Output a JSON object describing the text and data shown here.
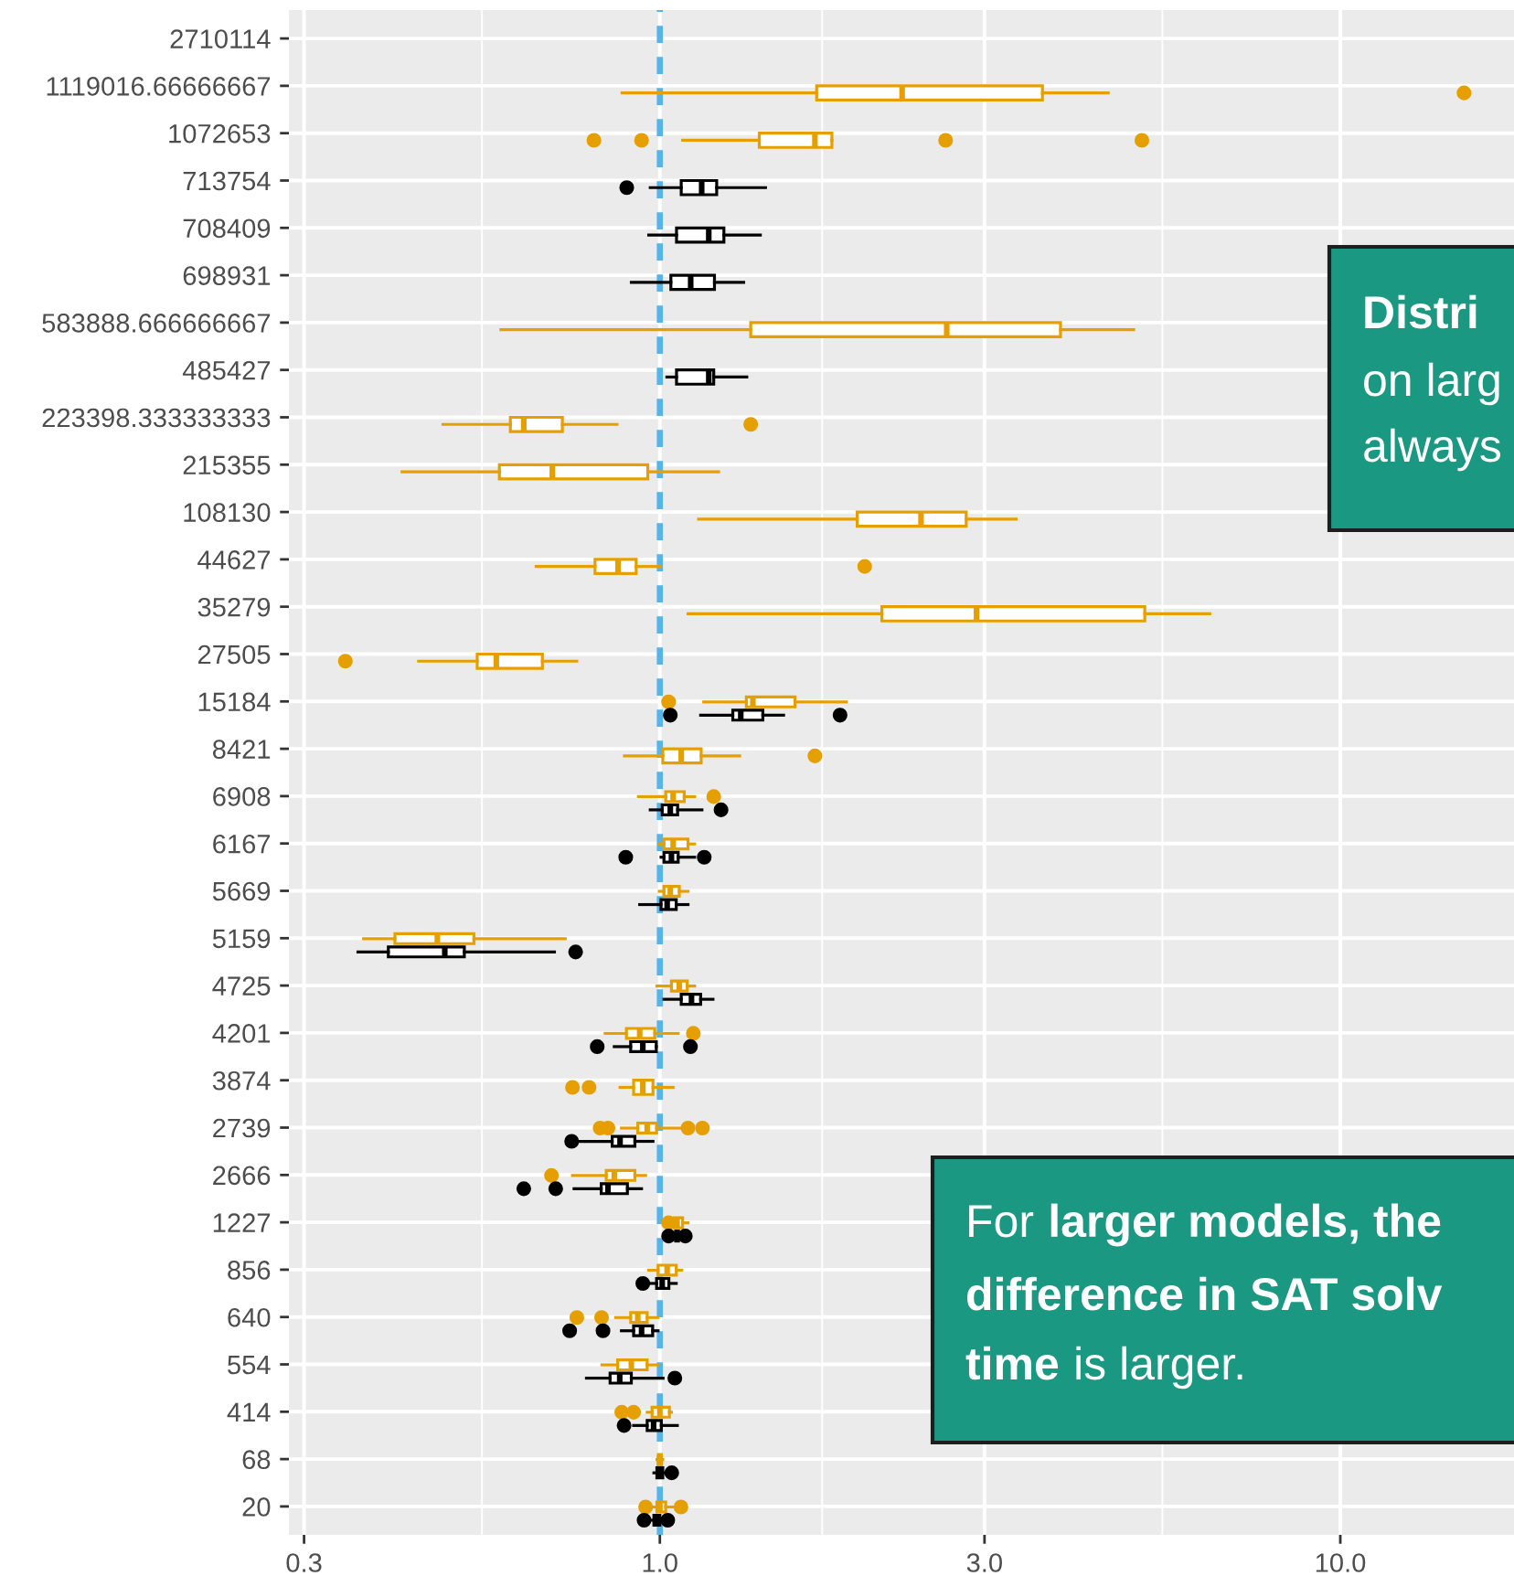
{
  "chart_data": {
    "type": "box",
    "orientation": "horizontal",
    "log": "x",
    "grid": true,
    "marker": "circle",
    "categories": [
      "2710114",
      "1119016.66666667",
      "1072653",
      "713754",
      "708409",
      "698931",
      "583888.666666667",
      "485427",
      "223398.333333333",
      "215355",
      "108130",
      "44627",
      "35279",
      "27505",
      "15184",
      "8421",
      "6908",
      "6167",
      "5669",
      "5159",
      "4725",
      "4201",
      "3874",
      "2739",
      "2666",
      "1227",
      "856",
      "640",
      "554",
      "414",
      "68",
      "20"
    ],
    "series": [
      {
        "color": "#e69f00",
        "boxes": [
          null,
          {
            "low": 0.88,
            "q1": 1.7,
            "median": 2.27,
            "q3": 3.65,
            "high": 4.56,
            "outliers": [
              15.2
            ]
          },
          {
            "low": 1.08,
            "q1": 1.4,
            "median": 1.69,
            "q3": 1.79,
            "high": 1.79,
            "outliers": [
              0.8,
              0.94,
              2.63,
              5.11
            ]
          },
          null,
          null,
          null,
          {
            "low": 0.584,
            "q1": 1.36,
            "median": 2.64,
            "q3": 3.88,
            "high": 4.97
          },
          null,
          {
            "low": 0.48,
            "q1": 0.603,
            "median": 0.631,
            "q3": 0.719,
            "high": 0.865,
            "outliers": [
              1.36
            ]
          },
          {
            "low": 0.418,
            "q1": 0.581,
            "median": 0.695,
            "q3": 0.96,
            "high": 1.22
          },
          {
            "low": 1.14,
            "q1": 1.95,
            "median": 2.42,
            "q3": 2.82,
            "high": 3.34
          },
          {
            "low": 0.658,
            "q1": 0.803,
            "median": 0.868,
            "q3": 0.923,
            "high": 1.0,
            "outliers": [
              2.0
            ]
          },
          {
            "low": 1.1,
            "q1": 2.12,
            "median": 2.92,
            "q3": 5.16,
            "high": 6.43
          },
          {
            "low": 0.442,
            "q1": 0.539,
            "median": 0.575,
            "q3": 0.672,
            "high": 0.755,
            "outliers": [
              0.345
            ]
          },
          {
            "low": 1.16,
            "q1": 1.34,
            "median": 1.37,
            "q3": 1.58,
            "high": 1.88,
            "outliers": [
              1.03
            ]
          },
          {
            "low": 0.887,
            "q1": 1.01,
            "median": 1.075,
            "q3": 1.15,
            "high": 1.31,
            "outliers": [
              1.69
            ]
          },
          {
            "low": 0.93,
            "q1": 1.02,
            "median": 1.046,
            "q3": 1.086,
            "high": 1.125,
            "outliers": [
              1.2
            ]
          },
          {
            "low": 0.998,
            "q1": 1.014,
            "median": 1.046,
            "q3": 1.1,
            "high": 1.125
          },
          {
            "low": 0.998,
            "q1": 1.014,
            "median": 1.036,
            "q3": 1.068,
            "high": 1.1
          },
          {
            "low": 0.367,
            "q1": 0.408,
            "median": 0.471,
            "q3": 0.533,
            "high": 0.726
          },
          {
            "low": 0.99,
            "q1": 1.04,
            "median": 1.068,
            "q3": 1.097,
            "high": 1.125
          },
          {
            "low": 0.831,
            "q1": 0.893,
            "median": 0.934,
            "q3": 0.983,
            "high": 1.064,
            "outliers": [
              1.12
            ]
          },
          {
            "low": 0.874,
            "q1": 0.915,
            "median": 0.944,
            "q3": 0.977,
            "high": 1.046,
            "outliers": [
              0.744,
              0.787
            ]
          },
          {
            "low": 0.878,
            "q1": 0.928,
            "median": 0.958,
            "q3": 0.989,
            "high": 1.079,
            "outliers": [
              0.817,
              0.839,
              1.1,
              1.155
            ]
          },
          {
            "low": 0.744,
            "q1": 0.834,
            "median": 0.857,
            "q3": 0.919,
            "high": 0.953,
            "outliers": [
              0.693
            ]
          },
          {
            "low": 1.04,
            "q1": 1.05,
            "median": 1.06,
            "q3": 1.08,
            "high": 1.1,
            "outliers": [
              1.03
            ]
          },
          {
            "low": 0.963,
            "q1": 0.994,
            "median": 1.025,
            "q3": 1.057,
            "high": 1.077
          },
          {
            "low": 0.861,
            "q1": 0.906,
            "median": 0.928,
            "q3": 0.958,
            "high": 0.994,
            "outliers": [
              0.755,
              0.821
            ]
          },
          {
            "low": 0.822,
            "q1": 0.867,
            "median": 0.908,
            "q3": 0.958,
            "high": 0.992
          },
          {
            "low": 0.958,
            "q1": 0.974,
            "median": 1.0,
            "q3": 1.033,
            "high": 1.04,
            "outliers": [
              0.879,
              0.915
            ]
          },
          {
            "low": 0.99,
            "q1": 0.995,
            "median": 1.0,
            "q3": 1.005,
            "high": 1.01
          },
          {
            "low": 0.97,
            "q1": 0.99,
            "median": 1.0,
            "q3": 1.02,
            "high": 1.05,
            "outliers": [
              0.953,
              1.074
            ]
          }
        ]
      },
      {
        "color": "#000000",
        "boxes": [
          null,
          null,
          null,
          {
            "low": 0.968,
            "q1": 1.075,
            "median": 1.152,
            "q3": 1.212,
            "high": 1.43,
            "outliers": [
              0.894
            ]
          },
          {
            "low": 0.963,
            "q1": 1.058,
            "median": 1.18,
            "q3": 1.242,
            "high": 1.405
          },
          {
            "low": 0.908,
            "q1": 1.038,
            "median": 1.11,
            "q3": 1.203,
            "high": 1.328
          },
          null,
          {
            "low": 1.024,
            "q1": 1.058,
            "median": 1.18,
            "q3": 1.2,
            "high": 1.342
          },
          null,
          null,
          null,
          null,
          null,
          null,
          {
            "low": 1.148,
            "q1": 1.28,
            "median": 1.315,
            "q3": 1.417,
            "high": 1.52,
            "outliers": [
              1.036,
              1.84
            ]
          },
          null,
          {
            "low": 0.968,
            "q1": 1.008,
            "median": 1.036,
            "q3": 1.062,
            "high": 1.153,
            "outliers": [
              1.23
            ]
          },
          {
            "low": 1.004,
            "q1": 1.014,
            "median": 1.04,
            "q3": 1.064,
            "high": 1.125,
            "outliers": [
              0.891,
              1.162
            ]
          },
          {
            "low": 0.934,
            "q1": 1.004,
            "median": 1.025,
            "q3": 1.057,
            "high": 1.1
          },
          {
            "low": 0.36,
            "q1": 0.399,
            "median": 0.483,
            "q3": 0.516,
            "high": 0.7,
            "outliers": [
              0.752
            ]
          },
          {
            "low": 1.014,
            "q1": 1.075,
            "median": 1.113,
            "q3": 1.148,
            "high": 1.197
          },
          {
            "low": 0.857,
            "q1": 0.906,
            "median": 0.944,
            "q3": 0.988,
            "high": 0.988,
            "outliers": [
              0.809,
              1.109
            ]
          },
          null,
          {
            "low": 0.757,
            "q1": 0.851,
            "median": 0.874,
            "q3": 0.919,
            "high": 0.977,
            "outliers": [
              0.742
            ]
          },
          {
            "low": 0.748,
            "q1": 0.82,
            "median": 0.839,
            "q3": 0.896,
            "high": 0.94,
            "outliers": [
              0.631,
              0.703
            ]
          },
          {
            "low": 1.05,
            "q1": 1.055,
            "median": 1.06,
            "q3": 1.065,
            "high": 1.07,
            "outliers": [
              1.03,
              1.09
            ]
          },
          {
            "low": 0.968,
            "q1": 0.989,
            "median": 1.008,
            "q3": 1.031,
            "high": 1.057,
            "outliers": [
              0.944
            ]
          },
          {
            "low": 0.878,
            "q1": 0.915,
            "median": 0.94,
            "q3": 0.976,
            "high": 0.994,
            "outliers": [
              0.737,
              0.825
            ]
          },
          {
            "low": 0.78,
            "q1": 0.845,
            "median": 0.873,
            "q3": 0.908,
            "high": 1.011,
            "outliers": [
              1.052
            ]
          },
          {
            "low": 0.915,
            "q1": 0.958,
            "median": 0.979,
            "q3": 1.005,
            "high": 1.061,
            "outliers": [
              0.886
            ]
          },
          {
            "low": 0.98,
            "q1": 0.99,
            "median": 1.0,
            "q3": 1.01,
            "high": 1.02,
            "outliers": [
              1.041
            ]
          },
          {
            "low": 0.96,
            "q1": 0.98,
            "median": 0.99,
            "q3": 1.0,
            "high": 1.01,
            "outliers": [
              0.948,
              1.027
            ]
          }
        ]
      }
    ],
    "xlim": [
      0.285,
      18
    ],
    "xticks": [
      0.3,
      {
        "value": 1,
        "label": "1.0"
      },
      {
        "value": 3,
        "label": "3.0"
      },
      {
        "value": 10,
        "label": "10.0"
      }
    ],
    "ref_lines": [
      {
        "axis": "x",
        "value": 1,
        "color": "#56b4e9",
        "line_style": "dashed"
      }
    ],
    "annotations": [
      "Distri",
      "on larg",
      "always",
      "For",
      "larger models, the",
      "difference in SAT solv",
      "time",
      "is larger."
    ]
  }
}
